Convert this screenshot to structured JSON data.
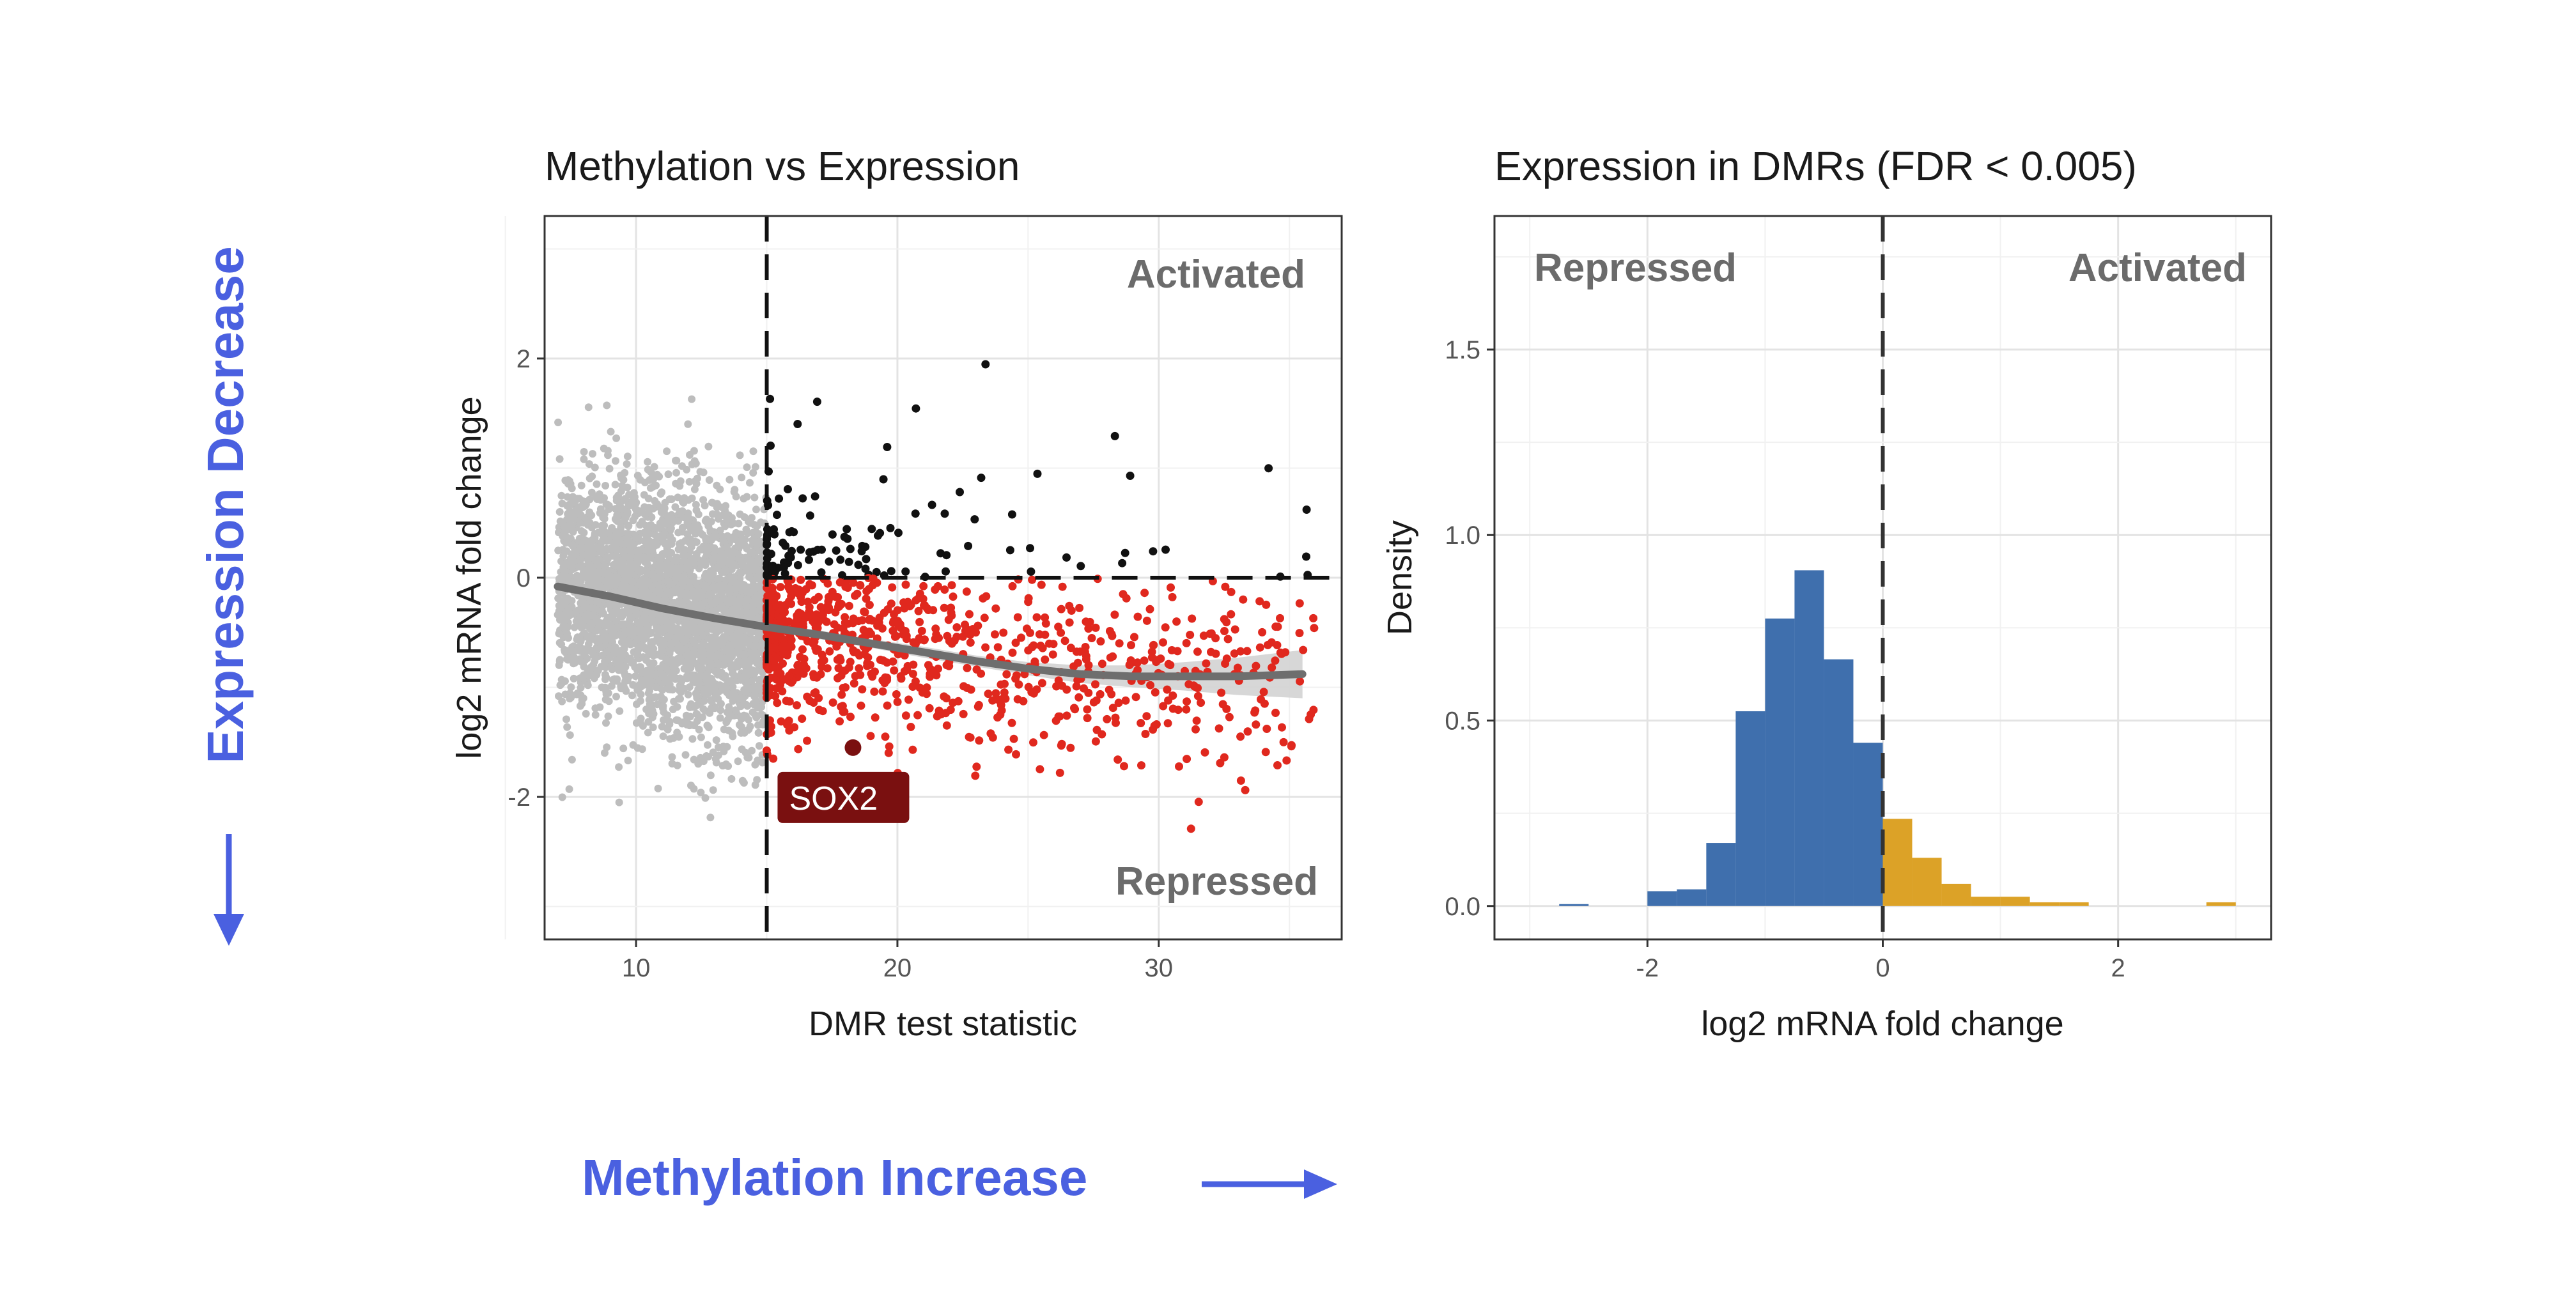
{
  "annotations": {
    "y_side_label": "Expression  Decrease",
    "x_side_label": "Methylation Increase",
    "arrow_color": "#4a60e0"
  },
  "chart_data": [
    {
      "type": "scatter",
      "title": "Methylation vs Expression",
      "xlabel": "DMR test statistic",
      "ylabel": "log2 mRNA fold change",
      "xlim": [
        6.5,
        37
      ],
      "ylim": [
        -3.3,
        3.3
      ],
      "x_ticks": [
        10,
        20,
        30
      ],
      "x_tick_labels": [
        "10",
        "20",
        "30"
      ],
      "y_ticks": [
        -2,
        0,
        2
      ],
      "y_tick_labels": [
        "-2",
        "0",
        "2"
      ],
      "grid": true,
      "threshold_x": 15,
      "reference_y": 0,
      "region_labels": {
        "top": "Activated",
        "bottom": "Repressed"
      },
      "colors": {
        "below_threshold": "#bdbdbd",
        "repressed": "#e0281e",
        "activated": "#111111",
        "trend": "#6e6e6e",
        "ribbon": "#d3d3d3",
        "highlight": "#7a1010"
      },
      "series": [
        {
          "group": "below_threshold",
          "n": 3200,
          "x_range": [
            7,
            15
          ],
          "y_mean": -0.25,
          "y_sd": 0.55
        },
        {
          "group": "above_threshold",
          "n": 1000,
          "x_range": [
            15,
            36
          ],
          "y_mean": -0.6,
          "y_sd": 0.45
        }
      ],
      "trend": {
        "x": [
          7,
          9,
          11,
          13,
          15,
          17,
          19,
          21,
          23,
          25,
          27,
          29,
          31,
          33,
          35.5
        ],
        "y": [
          -0.08,
          -0.17,
          -0.28,
          -0.37,
          -0.45,
          -0.52,
          -0.6,
          -0.68,
          -0.76,
          -0.83,
          -0.88,
          -0.9,
          -0.9,
          -0.9,
          -0.88
        ],
        "ribbon_halfwidth": [
          0.04,
          0.03,
          0.03,
          0.03,
          0.03,
          0.04,
          0.04,
          0.05,
          0.05,
          0.06,
          0.08,
          0.1,
          0.13,
          0.17,
          0.22
        ]
      },
      "highlight": {
        "label": "SOX2",
        "x": 18.3,
        "y": -1.55
      }
    },
    {
      "type": "bar",
      "subtype": "histogram",
      "title": "Expression in DMRs (FDR < 0.005)",
      "xlabel": "log2 mRNA fold change",
      "ylabel": "Density",
      "xlim": [
        -3.3,
        3.3
      ],
      "ylim": [
        -0.09,
        1.86
      ],
      "x_ticks": [
        -2,
        0,
        2
      ],
      "x_tick_labels": [
        "-2",
        "0",
        "2"
      ],
      "y_ticks": [
        0,
        0.5,
        1.0,
        1.5
      ],
      "y_tick_labels": [
        "0.0",
        "0.5",
        "1.0",
        "1.5"
      ],
      "grid": true,
      "threshold_x": 0,
      "region_labels": {
        "left": "Repressed",
        "right": "Activated"
      },
      "bin_width": 0.25,
      "bin_starts": [
        -2.75,
        -2.5,
        -2.25,
        -2.0,
        -1.75,
        -1.5,
        -1.25,
        -1.0,
        -0.75,
        -0.5,
        -0.25,
        0.0,
        0.25,
        0.5,
        0.75,
        1.0,
        1.25,
        1.5,
        1.75,
        2.0,
        2.25,
        2.5,
        2.75
      ],
      "values": [
        0.005,
        0.0,
        0.0,
        0.04,
        0.045,
        0.17,
        0.525,
        0.775,
        0.905,
        0.665,
        0.44,
        0.235,
        0.13,
        0.06,
        0.025,
        0.025,
        0.01,
        0.01,
        0.0,
        0.0,
        0.0,
        0.0,
        0.01
      ],
      "colors": {
        "negative": "#3f6fad",
        "positive": "#dca227"
      }
    }
  ]
}
